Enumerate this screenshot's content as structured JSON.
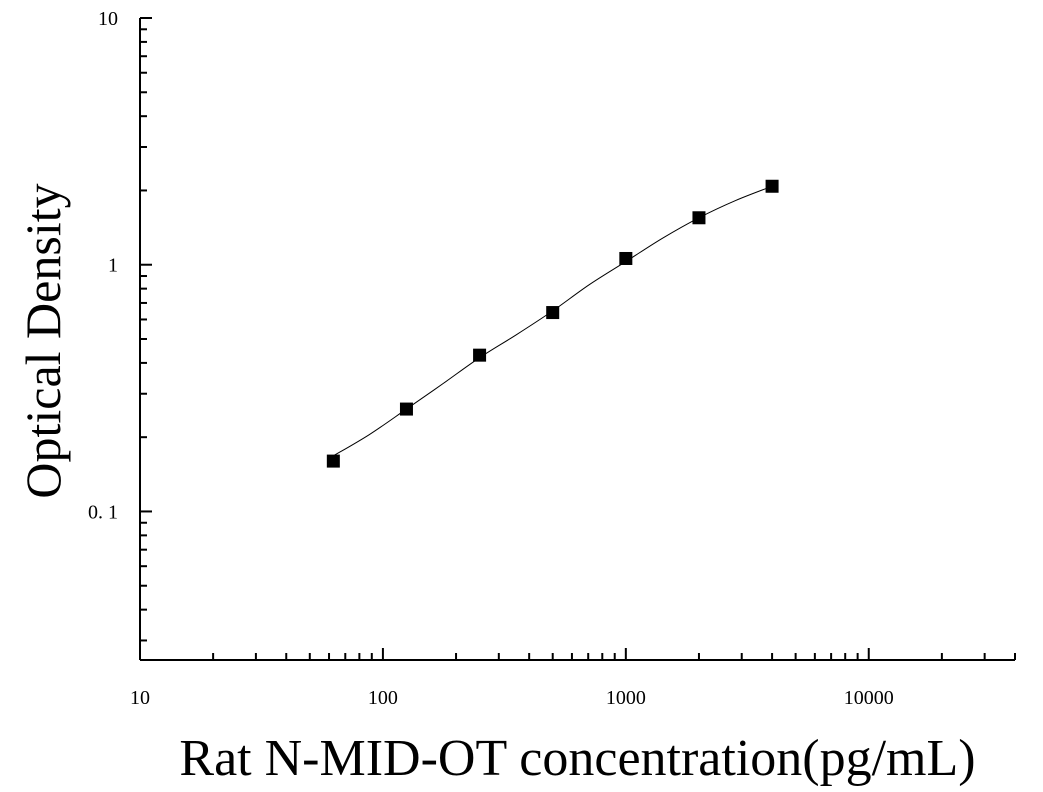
{
  "chart_data": {
    "type": "scatter",
    "xlabel": "Rat N-MID-OT concentration(pg/mL)",
    "ylabel": "Optical Density",
    "x_scale": "log",
    "y_scale": "log",
    "xlim": [
      10,
      40000
    ],
    "ylim": [
      0.025,
      10
    ],
    "x_ticks": [
      {
        "value": 10,
        "label": "10"
      },
      {
        "value": 100,
        "label": "100"
      },
      {
        "value": 1000,
        "label": "1000"
      },
      {
        "value": 10000,
        "label": "10000"
      }
    ],
    "y_ticks": [
      {
        "value": 0.1,
        "label": "0. 1"
      },
      {
        "value": 1,
        "label": "1"
      },
      {
        "value": 10,
        "label": "10"
      }
    ],
    "grid": false,
    "marker": "square",
    "points": [
      {
        "x": 62.5,
        "y": 0.16
      },
      {
        "x": 125,
        "y": 0.26
      },
      {
        "x": 250,
        "y": 0.43
      },
      {
        "x": 500,
        "y": 0.64
      },
      {
        "x": 1000,
        "y": 1.06
      },
      {
        "x": 2000,
        "y": 1.55
      },
      {
        "x": 4000,
        "y": 2.08
      }
    ],
    "fit_curve": {
      "x": [
        62.5,
        88,
        125,
        177,
        250,
        354,
        500,
        707,
        1000,
        1414,
        2000,
        2828,
        4000
      ],
      "y": [
        0.168,
        0.205,
        0.26,
        0.33,
        0.42,
        0.52,
        0.65,
        0.83,
        1.03,
        1.28,
        1.55,
        1.82,
        2.08
      ]
    }
  }
}
